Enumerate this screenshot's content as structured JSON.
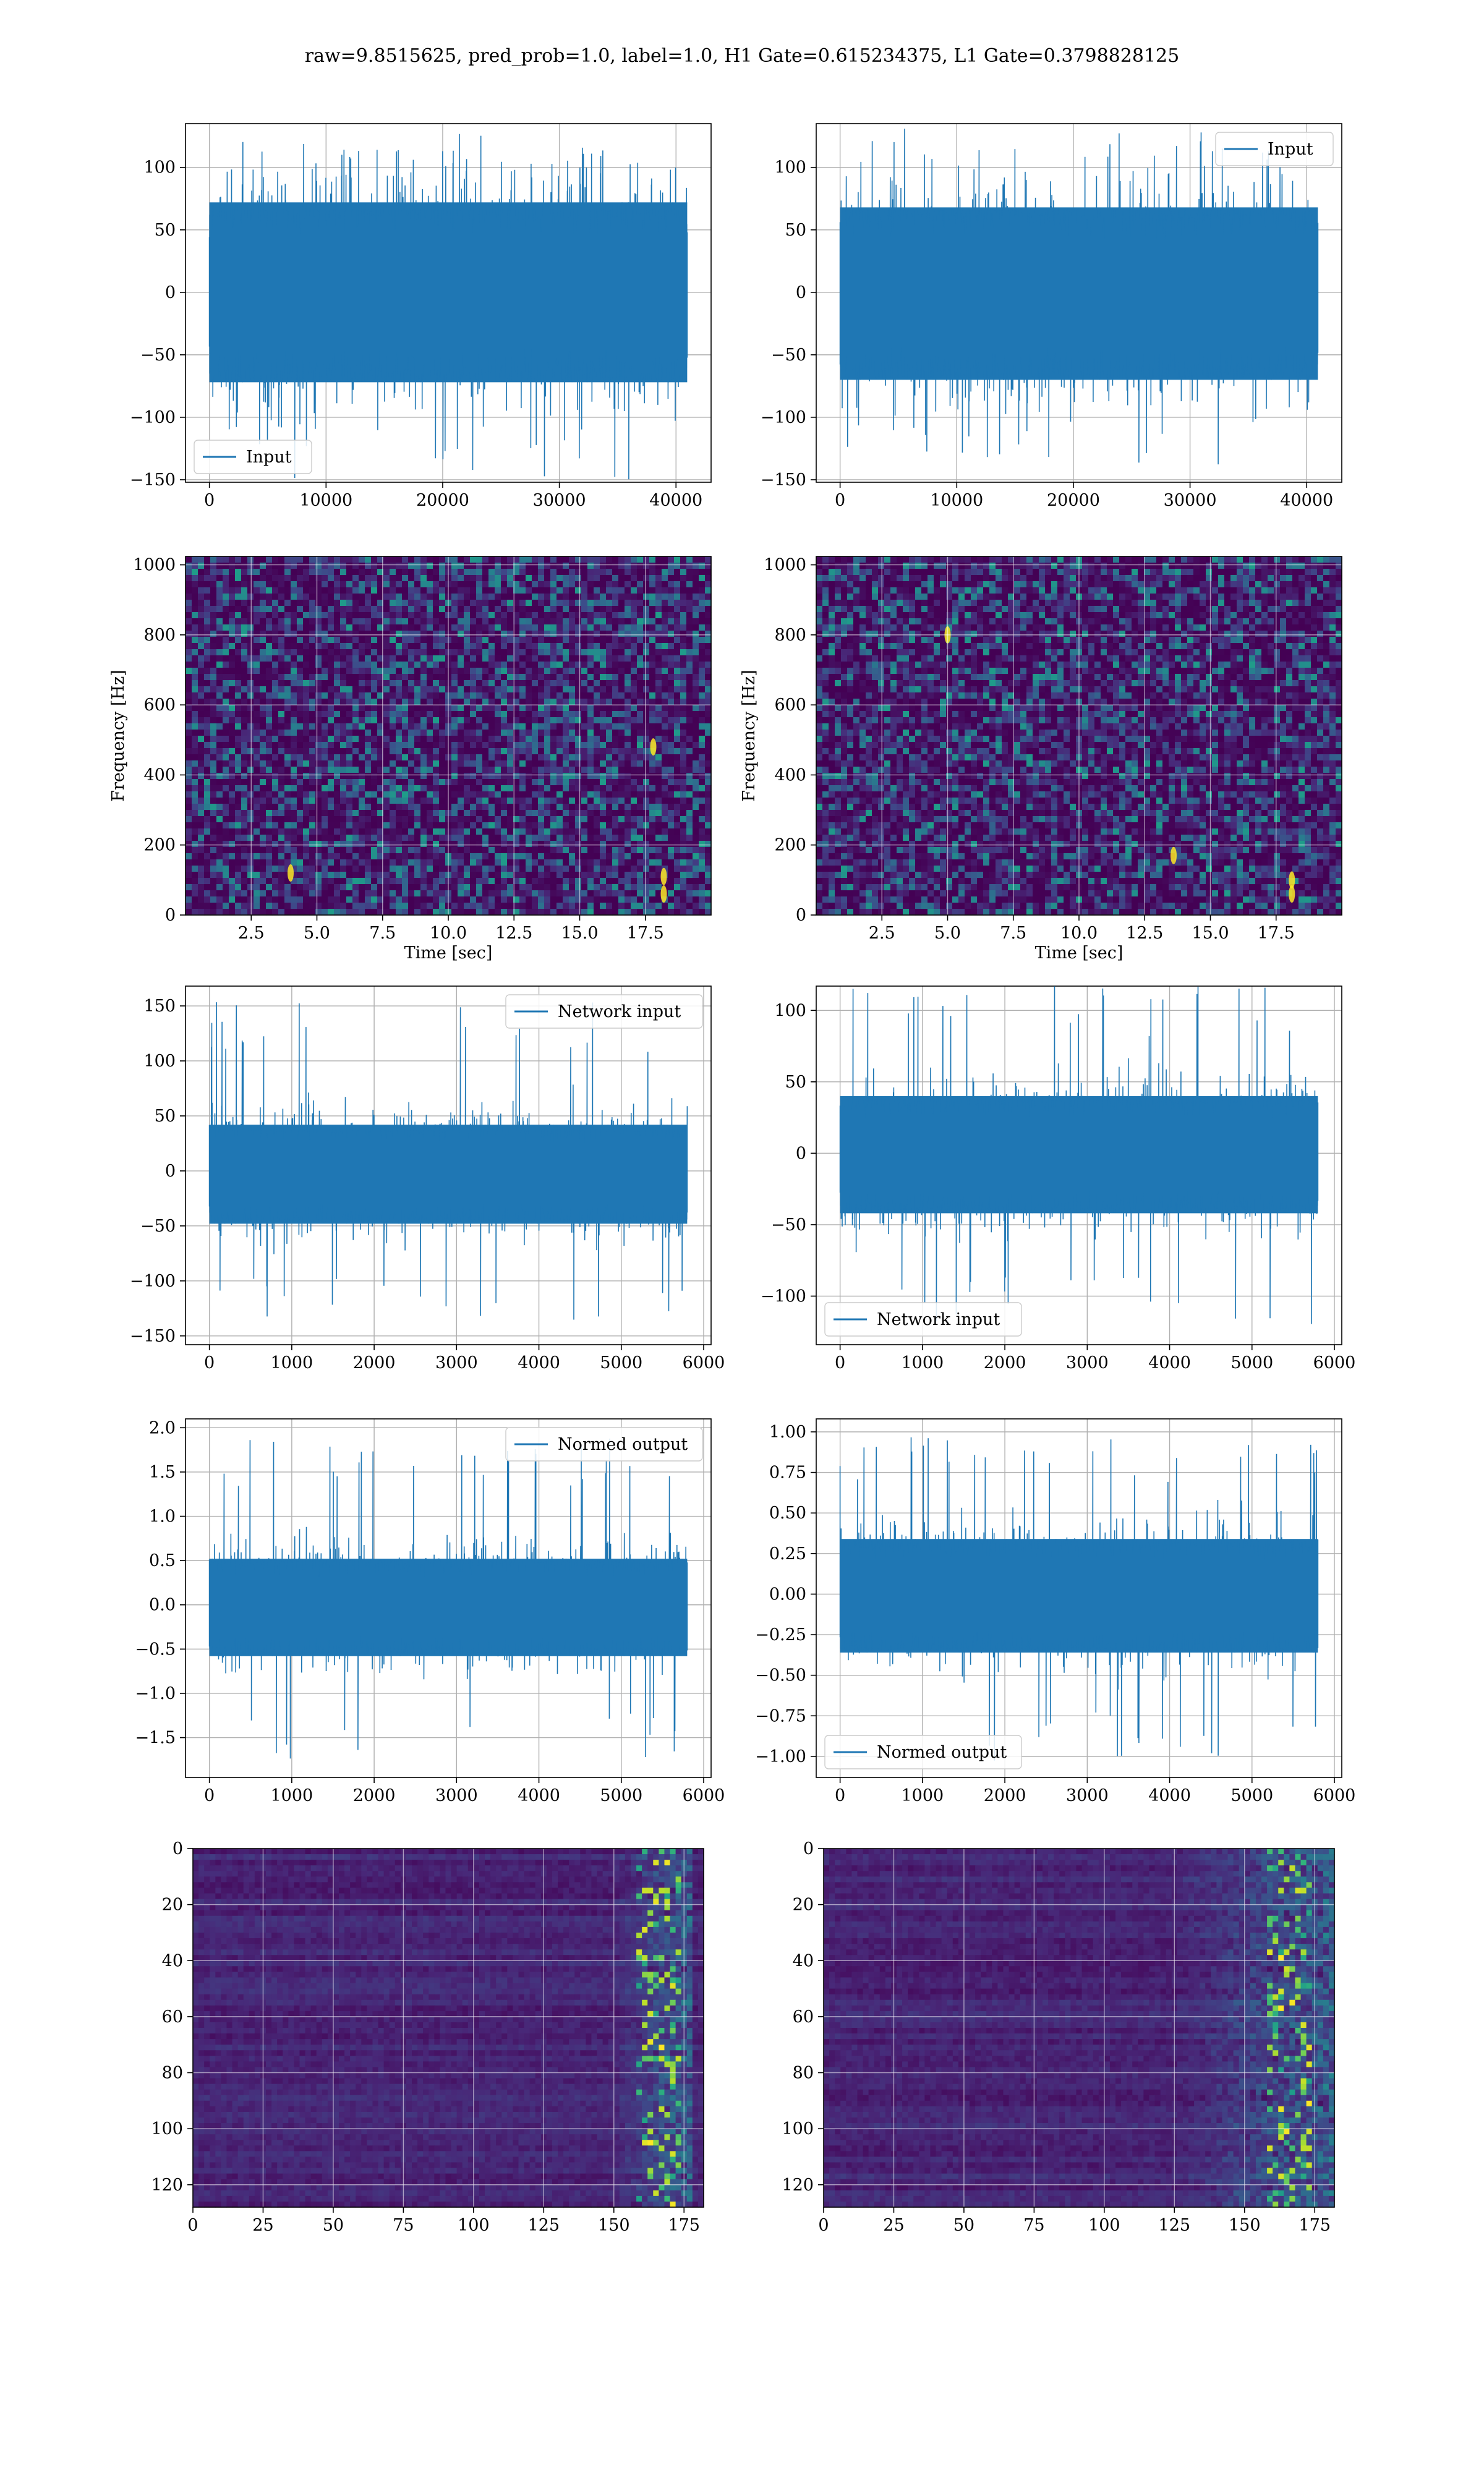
{
  "figure": {
    "suptitle": "raw=9.8515625, pred_prob=1.0, label=1.0, H1 Gate=0.615234375, L1 Gate=0.3798828125"
  },
  "colors": {
    "series": "#1f77b4",
    "grid": "#b0b0b0",
    "viridis_low": "#440154",
    "viridis_mid": "#21918c",
    "viridis_high": "#fde725"
  },
  "chart_data": [
    {
      "id": "h1-input",
      "type": "line",
      "x_range": [
        0,
        40960
      ],
      "xlim": [
        -2048,
        43008
      ],
      "ylim": [
        -152,
        135
      ],
      "xticks": [
        0,
        10000,
        20000,
        30000,
        40000
      ],
      "xtick_labels": [
        "0",
        "10000",
        "20000",
        "30000",
        "40000"
      ],
      "yticks": [
        -150,
        -100,
        -50,
        0,
        50,
        100
      ],
      "ytick_labels": [
        "−150",
        "−100",
        "−50",
        "0",
        "50",
        "100"
      ],
      "series": [
        {
          "name": "Input",
          "band": [
            -72,
            72
          ],
          "peaks": [
            -150,
            127
          ]
        }
      ],
      "legend": "lower-left",
      "grid": true
    },
    {
      "id": "l1-input",
      "type": "line",
      "x_range": [
        0,
        40960
      ],
      "xlim": [
        -2048,
        43008
      ],
      "ylim": [
        -152,
        135
      ],
      "xticks": [
        0,
        10000,
        20000,
        30000,
        40000
      ],
      "xtick_labels": [
        "0",
        "10000",
        "20000",
        "30000",
        "40000"
      ],
      "yticks": [
        -150,
        -100,
        -50,
        0,
        50,
        100
      ],
      "ytick_labels": [
        "−150",
        "−100",
        "−50",
        "0",
        "50",
        "100"
      ],
      "series": [
        {
          "name": "Input",
          "band": [
            -70,
            68
          ],
          "peaks": [
            -140,
            132
          ]
        }
      ],
      "legend": "upper-right",
      "grid": true
    },
    {
      "id": "h1-spectrogram",
      "type": "heatmap",
      "xlim": [
        0,
        20
      ],
      "ylim": [
        0,
        1024
      ],
      "xticks": [
        2.5,
        5.0,
        7.5,
        10.0,
        12.5,
        15.0,
        17.5
      ],
      "xtick_labels": [
        "2.5",
        "5.0",
        "7.5",
        "10.0",
        "12.5",
        "15.0",
        "17.5"
      ],
      "yticks": [
        0,
        200,
        400,
        600,
        800,
        1000
      ],
      "ytick_labels": [
        "0",
        "200",
        "400",
        "600",
        "800",
        "1000"
      ],
      "xlabel": "Time [sec]",
      "ylabel": "Frequency [Hz]",
      "colormap": "viridis",
      "grid": true,
      "bright_spots": [
        {
          "t": 18.2,
          "f": 60
        },
        {
          "t": 18.2,
          "f": 110
        },
        {
          "t": 17.8,
          "f": 480
        },
        {
          "t": 4.0,
          "f": 120
        }
      ]
    },
    {
      "id": "l1-spectrogram",
      "type": "heatmap",
      "xlim": [
        0,
        20
      ],
      "ylim": [
        0,
        1024
      ],
      "xticks": [
        2.5,
        5.0,
        7.5,
        10.0,
        12.5,
        15.0,
        17.5
      ],
      "xtick_labels": [
        "2.5",
        "5.0",
        "7.5",
        "10.0",
        "12.5",
        "15.0",
        "17.5"
      ],
      "yticks": [
        0,
        200,
        400,
        600,
        800,
        1000
      ],
      "ytick_labels": [
        "0",
        "200",
        "400",
        "600",
        "800",
        "1000"
      ],
      "xlabel": "Time [sec]",
      "ylabel": "Frequency [Hz]",
      "colormap": "viridis",
      "grid": true,
      "bright_spots": [
        {
          "t": 18.1,
          "f": 60
        },
        {
          "t": 18.1,
          "f": 100
        },
        {
          "t": 13.6,
          "f": 170
        },
        {
          "t": 5.0,
          "f": 800
        }
      ]
    },
    {
      "id": "h1-network-input",
      "type": "line",
      "x_range": [
        0,
        5800
      ],
      "xlim": [
        -290,
        6090
      ],
      "ylim": [
        -158,
        168
      ],
      "xticks": [
        0,
        1000,
        2000,
        3000,
        4000,
        5000,
        6000
      ],
      "xtick_labels": [
        "0",
        "1000",
        "2000",
        "3000",
        "4000",
        "5000",
        "6000"
      ],
      "yticks": [
        -150,
        -100,
        -50,
        0,
        50,
        100,
        150
      ],
      "ytick_labels": [
        "−150",
        "−100",
        "−50",
        "0",
        "50",
        "100",
        "150"
      ],
      "series": [
        {
          "name": "Network input",
          "band": [
            -48,
            42
          ],
          "peaks": [
            -140,
            154
          ]
        }
      ],
      "legend": "upper-right",
      "grid": true
    },
    {
      "id": "l1-network-input",
      "type": "line",
      "x_range": [
        0,
        5800
      ],
      "xlim": [
        -290,
        6090
      ],
      "ylim": [
        -134,
        117
      ],
      "xticks": [
        0,
        1000,
        2000,
        3000,
        4000,
        5000,
        6000
      ],
      "xtick_labels": [
        "0",
        "1000",
        "2000",
        "3000",
        "4000",
        "5000",
        "6000"
      ],
      "yticks": [
        -100,
        -50,
        0,
        50,
        100
      ],
      "ytick_labels": [
        "−100",
        "−50",
        "0",
        "50",
        "100"
      ],
      "series": [
        {
          "name": "Network input",
          "band": [
            -42,
            40
          ],
          "peaks": [
            -122,
            117
          ]
        }
      ],
      "legend": "lower-left",
      "grid": true
    },
    {
      "id": "h1-normed-output",
      "type": "line",
      "x_range": [
        0,
        5800
      ],
      "xlim": [
        -290,
        6090
      ],
      "ylim": [
        -1.95,
        2.1
      ],
      "xticks": [
        0,
        1000,
        2000,
        3000,
        4000,
        5000,
        6000
      ],
      "xtick_labels": [
        "0",
        "1000",
        "2000",
        "3000",
        "4000",
        "5000",
        "6000"
      ],
      "yticks": [
        -1.5,
        -1.0,
        -0.5,
        0.0,
        0.5,
        1.0,
        1.5,
        2.0
      ],
      "ytick_labels": [
        "−1.5",
        "−1.0",
        "−0.5",
        "0.0",
        "0.5",
        "1.0",
        "1.5",
        "2.0"
      ],
      "series": [
        {
          "name": "Normed output",
          "band": [
            -0.58,
            0.52
          ],
          "peaks": [
            -1.75,
            1.9
          ]
        }
      ],
      "legend": "upper-right",
      "grid": true
    },
    {
      "id": "l1-normed-output",
      "type": "line",
      "x_range": [
        0,
        5800
      ],
      "xlim": [
        -290,
        6090
      ],
      "ylim": [
        -1.13,
        1.08
      ],
      "xticks": [
        0,
        1000,
        2000,
        3000,
        4000,
        5000,
        6000
      ],
      "xtick_labels": [
        "0",
        "1000",
        "2000",
        "3000",
        "4000",
        "5000",
        "6000"
      ],
      "yticks": [
        -1.0,
        -0.75,
        -0.5,
        -0.25,
        0.0,
        0.25,
        0.5,
        0.75,
        1.0
      ],
      "ytick_labels": [
        "−1.00",
        "−0.75",
        "−0.50",
        "−0.25",
        "0.00",
        "0.25",
        "0.50",
        "0.75",
        "1.00"
      ],
      "series": [
        {
          "name": "Normed output",
          "band": [
            -0.36,
            0.34
          ],
          "peaks": [
            -1.03,
            0.98
          ]
        }
      ],
      "legend": "lower-left",
      "grid": true
    },
    {
      "id": "h1-feature-map",
      "type": "heatmap",
      "xlim": [
        0,
        182
      ],
      "ylim": [
        128,
        0
      ],
      "xticks": [
        0,
        25,
        50,
        75,
        100,
        125,
        150,
        175
      ],
      "xtick_labels": [
        "0",
        "25",
        "50",
        "75",
        "100",
        "125",
        "150",
        "175"
      ],
      "yticks": [
        0,
        20,
        40,
        60,
        80,
        100,
        120
      ],
      "ytick_labels": [
        "0",
        "20",
        "40",
        "60",
        "80",
        "100",
        "120"
      ],
      "colormap": "viridis",
      "grid": true,
      "active_columns": [
        150,
        178
      ]
    },
    {
      "id": "l1-feature-map",
      "type": "heatmap",
      "xlim": [
        0,
        182
      ],
      "ylim": [
        128,
        0
      ],
      "xticks": [
        0,
        25,
        50,
        75,
        100,
        125,
        150,
        175
      ],
      "xtick_labels": [
        "0",
        "25",
        "50",
        "75",
        "100",
        "125",
        "150",
        "175"
      ],
      "yticks": [
        0,
        20,
        40,
        60,
        80,
        100,
        120
      ],
      "ytick_labels": [
        "0",
        "20",
        "40",
        "60",
        "80",
        "100",
        "120"
      ],
      "colormap": "viridis",
      "grid": true,
      "active_columns": [
        125,
        182
      ]
    }
  ]
}
